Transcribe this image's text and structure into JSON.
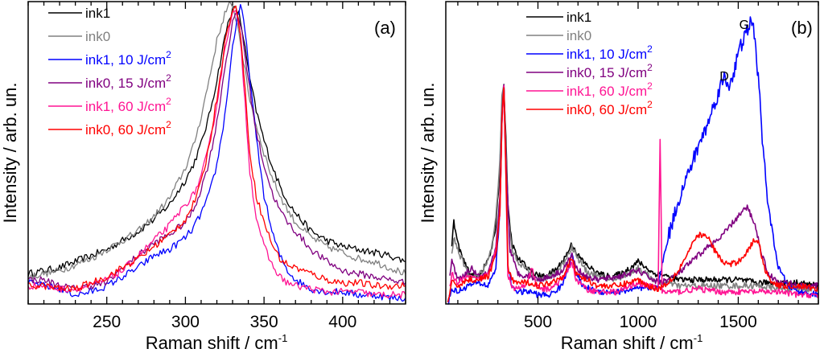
{
  "chart_data": [
    {
      "type": "line",
      "panel_label": "(a)",
      "xlabel": "Raman shift / cm",
      "xlabel_sup": "-1",
      "ylabel": "Intensity / arb. un.",
      "xlim": [
        200,
        440
      ],
      "ylim": [
        0,
        1
      ],
      "xticks": [
        250,
        300,
        350,
        400
      ],
      "x_minor_step": 10,
      "legend_position": "top-left",
      "grid": false,
      "series": [
        {
          "name": "ink1",
          "label_main": "ink1",
          "label_sup": "",
          "color": "#000000",
          "x": [
            200,
            210,
            220,
            230,
            240,
            250,
            260,
            270,
            280,
            290,
            300,
            305,
            310,
            315,
            320,
            325,
            328,
            331,
            334,
            337,
            340,
            345,
            350,
            355,
            360,
            365,
            370,
            380,
            390,
            400,
            410,
            420,
            430,
            440
          ],
          "y": [
            0.1,
            0.11,
            0.12,
            0.14,
            0.16,
            0.18,
            0.21,
            0.24,
            0.28,
            0.33,
            0.41,
            0.46,
            0.53,
            0.62,
            0.74,
            0.88,
            0.95,
            0.98,
            0.96,
            0.88,
            0.77,
            0.64,
            0.54,
            0.46,
            0.39,
            0.34,
            0.3,
            0.24,
            0.21,
            0.19,
            0.18,
            0.17,
            0.16,
            0.14
          ]
        },
        {
          "name": "ink0",
          "label_main": "ink0",
          "label_sup": "",
          "color": "#808080",
          "x": [
            200,
            210,
            220,
            230,
            240,
            250,
            260,
            270,
            280,
            290,
            300,
            305,
            310,
            315,
            320,
            325,
            328,
            331,
            334,
            337,
            340,
            345,
            350,
            355,
            360,
            365,
            370,
            380,
            390,
            400,
            410,
            420,
            430,
            440
          ],
          "y": [
            0.09,
            0.1,
            0.11,
            0.13,
            0.15,
            0.18,
            0.21,
            0.24,
            0.29,
            0.35,
            0.45,
            0.52,
            0.62,
            0.74,
            0.87,
            0.96,
            0.99,
            0.97,
            0.9,
            0.8,
            0.7,
            0.59,
            0.5,
            0.42,
            0.36,
            0.31,
            0.27,
            0.22,
            0.19,
            0.17,
            0.15,
            0.14,
            0.12,
            0.1
          ]
        },
        {
          "name": "ink1, 10 J/cm2",
          "label_main": "ink1, 10 J/cm",
          "label_sup": "2",
          "color": "#0000ff",
          "x": [
            200,
            210,
            220,
            230,
            240,
            250,
            260,
            270,
            280,
            290,
            300,
            305,
            310,
            315,
            320,
            325,
            330,
            333,
            335,
            337,
            340,
            345,
            350,
            355,
            360,
            365,
            370,
            380,
            390,
            400,
            410,
            420,
            430,
            440
          ],
          "y": [
            0.07,
            0.06,
            0.05,
            0.03,
            0.04,
            0.06,
            0.09,
            0.12,
            0.16,
            0.18,
            0.22,
            0.25,
            0.3,
            0.36,
            0.46,
            0.62,
            0.85,
            0.95,
            0.98,
            0.94,
            0.8,
            0.55,
            0.36,
            0.24,
            0.16,
            0.11,
            0.08,
            0.05,
            0.04,
            0.04,
            0.03,
            0.03,
            0.02,
            0.02
          ]
        },
        {
          "name": "ink0, 15 J/cm2",
          "label_main": "ink0, 15 J/cm",
          "label_sup": "2",
          "color": "#800080",
          "x": [
            200,
            210,
            220,
            230,
            240,
            250,
            260,
            270,
            280,
            290,
            300,
            305,
            310,
            315,
            320,
            325,
            330,
            333,
            336,
            340,
            345,
            350,
            355,
            360,
            365,
            370,
            380,
            390,
            400,
            410,
            420,
            430,
            440
          ],
          "y": [
            0.08,
            0.08,
            0.06,
            0.05,
            0.06,
            0.07,
            0.12,
            0.16,
            0.2,
            0.23,
            0.27,
            0.31,
            0.38,
            0.47,
            0.6,
            0.78,
            0.93,
            0.96,
            0.9,
            0.74,
            0.57,
            0.46,
            0.37,
            0.31,
            0.27,
            0.24,
            0.18,
            0.14,
            0.11,
            0.1,
            0.09,
            0.08,
            0.07
          ]
        },
        {
          "name": "ink1, 60 J/cm2",
          "label_main": "ink1, 60 J/cm",
          "label_sup": "2",
          "color": "#ff1493",
          "x": [
            200,
            210,
            220,
            230,
            240,
            250,
            260,
            270,
            280,
            290,
            300,
            305,
            310,
            315,
            320,
            325,
            329,
            332,
            335,
            338,
            341,
            345,
            350,
            355,
            360,
            365,
            370,
            380,
            390,
            400,
            410,
            420,
            430,
            440
          ],
          "y": [
            0.06,
            0.06,
            0.05,
            0.05,
            0.06,
            0.08,
            0.11,
            0.16,
            0.21,
            0.26,
            0.33,
            0.36,
            0.42,
            0.52,
            0.66,
            0.84,
            0.95,
            0.97,
            0.88,
            0.66,
            0.44,
            0.29,
            0.19,
            0.13,
            0.09,
            0.07,
            0.06,
            0.05,
            0.04,
            0.04,
            0.04,
            0.03,
            0.03,
            0.03
          ]
        },
        {
          "name": "ink0, 60 J/cm2",
          "label_main": "ink0, 60 J/cm",
          "label_sup": "2",
          "color": "#ff0000",
          "x": [
            200,
            210,
            220,
            230,
            240,
            250,
            260,
            270,
            280,
            290,
            300,
            305,
            310,
            315,
            320,
            325,
            329,
            332,
            335,
            338,
            341,
            345,
            350,
            355,
            360,
            365,
            370,
            380,
            390,
            400,
            410,
            420,
            430,
            440
          ],
          "y": [
            0.06,
            0.06,
            0.05,
            0.05,
            0.07,
            0.09,
            0.12,
            0.15,
            0.19,
            0.23,
            0.28,
            0.33,
            0.4,
            0.52,
            0.68,
            0.86,
            0.96,
            0.98,
            0.9,
            0.7,
            0.5,
            0.36,
            0.27,
            0.2,
            0.15,
            0.13,
            0.12,
            0.1,
            0.08,
            0.07,
            0.07,
            0.06,
            0.06,
            0.06
          ]
        }
      ]
    },
    {
      "type": "line",
      "panel_label": "(b)",
      "xlabel": "Raman shift / cm",
      "xlabel_sup": "-1",
      "ylabel": "Intensity / arb. un.",
      "xlim": [
        40,
        1900
      ],
      "ylim": [
        0,
        1
      ],
      "xticks": [
        500,
        1000,
        1500
      ],
      "x_minor_step": 100,
      "legend_position": "top-center",
      "grid": false,
      "annotations": [
        {
          "text": "D",
          "x": 1430,
          "y": 0.74
        },
        {
          "text": "G",
          "x": 1530,
          "y": 0.91
        }
      ],
      "series": [
        {
          "name": "ink1",
          "label_main": "ink1",
          "label_sup": "",
          "color": "#000000",
          "x": [
            70,
            80,
            100,
            130,
            160,
            200,
            240,
            270,
            290,
            310,
            320,
            330,
            340,
            350,
            370,
            400,
            450,
            480,
            520,
            560,
            600,
            640,
            670,
            700,
            740,
            800,
            860,
            920,
            980,
            1000,
            1040,
            1080,
            1110,
            1150,
            1200,
            1300,
            1400,
            1500,
            1600,
            1700,
            1800,
            1900
          ],
          "y": [
            0.2,
            0.27,
            0.2,
            0.14,
            0.1,
            0.09,
            0.13,
            0.18,
            0.26,
            0.45,
            0.66,
            0.72,
            0.55,
            0.32,
            0.2,
            0.15,
            0.12,
            0.1,
            0.09,
            0.1,
            0.12,
            0.16,
            0.2,
            0.16,
            0.13,
            0.1,
            0.09,
            0.1,
            0.13,
            0.14,
            0.12,
            0.1,
            0.1,
            0.09,
            0.08,
            0.08,
            0.08,
            0.08,
            0.07,
            0.07,
            0.07,
            0.06
          ]
        },
        {
          "name": "ink0",
          "label_main": "ink0",
          "label_sup": "",
          "color": "#808080",
          "x": [
            70,
            80,
            100,
            130,
            160,
            200,
            240,
            270,
            290,
            310,
            320,
            330,
            340,
            350,
            370,
            400,
            450,
            480,
            520,
            560,
            600,
            640,
            670,
            700,
            740,
            800,
            860,
            920,
            980,
            1000,
            1040,
            1080,
            1110,
            1150,
            1200,
            1300,
            1400,
            1500,
            1600,
            1700,
            1800,
            1900
          ],
          "y": [
            0.17,
            0.22,
            0.18,
            0.13,
            0.09,
            0.09,
            0.13,
            0.19,
            0.28,
            0.48,
            0.68,
            0.72,
            0.52,
            0.3,
            0.18,
            0.14,
            0.11,
            0.09,
            0.08,
            0.09,
            0.11,
            0.15,
            0.19,
            0.15,
            0.11,
            0.09,
            0.08,
            0.09,
            0.11,
            0.12,
            0.1,
            0.08,
            0.07,
            0.07,
            0.06,
            0.06,
            0.06,
            0.06,
            0.06,
            0.05,
            0.05,
            0.05
          ]
        },
        {
          "name": "ink1, 10 J/cm2",
          "label_main": "ink1, 10 J/cm",
          "label_sup": "2",
          "color": "#0000ff",
          "x": [
            50,
            70,
            100,
            150,
            200,
            250,
            290,
            310,
            320,
            330,
            340,
            350,
            370,
            400,
            470,
            500,
            560,
            620,
            660,
            670,
            680,
            720,
            800,
            900,
            1000,
            1040,
            1100,
            1120,
            1150,
            1200,
            1250,
            1300,
            1350,
            1400,
            1430,
            1450,
            1480,
            1500,
            1530,
            1560,
            1580,
            1600,
            1620,
            1650,
            1700,
            1750,
            1800,
            1900
          ],
          "y": [
            0.0,
            0.05,
            0.04,
            0.06,
            0.07,
            0.06,
            0.12,
            0.3,
            0.6,
            0.72,
            0.45,
            0.12,
            0.06,
            0.04,
            0.04,
            0.03,
            0.03,
            0.06,
            0.14,
            0.17,
            0.12,
            0.06,
            0.04,
            0.04,
            0.05,
            0.05,
            0.06,
            0.13,
            0.22,
            0.34,
            0.43,
            0.52,
            0.6,
            0.7,
            0.75,
            0.72,
            0.77,
            0.83,
            0.88,
            0.93,
            0.9,
            0.75,
            0.55,
            0.32,
            0.12,
            0.06,
            0.04,
            0.03
          ]
        },
        {
          "name": "ink0, 15 J/cm2",
          "label_main": "ink0, 15 J/cm",
          "label_sup": "2",
          "color": "#800080",
          "x": [
            60,
            70,
            100,
            130,
            170,
            200,
            250,
            290,
            310,
            320,
            330,
            340,
            360,
            400,
            470,
            500,
            560,
            620,
            670,
            690,
            740,
            800,
            900,
            1000,
            1050,
            1100,
            1150,
            1200,
            1250,
            1300,
            1350,
            1400,
            1450,
            1500,
            1545,
            1580,
            1620,
            1650,
            1700,
            1750,
            1800,
            1900
          ],
          "y": [
            0.1,
            0.14,
            0.08,
            0.09,
            0.12,
            0.09,
            0.1,
            0.18,
            0.35,
            0.62,
            0.72,
            0.48,
            0.18,
            0.1,
            0.09,
            0.08,
            0.09,
            0.11,
            0.16,
            0.12,
            0.09,
            0.08,
            0.09,
            0.11,
            0.09,
            0.07,
            0.08,
            0.1,
            0.13,
            0.16,
            0.19,
            0.21,
            0.25,
            0.29,
            0.32,
            0.27,
            0.16,
            0.1,
            0.07,
            0.07,
            0.06,
            0.06
          ]
        },
        {
          "name": "ink1, 60 J/cm2",
          "label_main": "ink1, 60 J/cm",
          "label_sup": "2",
          "color": "#ff1493",
          "x": [
            60,
            70,
            100,
            150,
            200,
            250,
            290,
            310,
            320,
            330,
            340,
            350,
            370,
            400,
            450,
            470,
            490,
            520,
            560,
            620,
            670,
            690,
            740,
            800,
            900,
            1000,
            1050,
            1100,
            1105,
            1110,
            1115,
            1120,
            1200,
            1300,
            1400,
            1500,
            1600,
            1700,
            1800,
            1900
          ],
          "y": [
            0.05,
            0.1,
            0.07,
            0.09,
            0.08,
            0.1,
            0.18,
            0.3,
            0.6,
            0.72,
            0.42,
            0.1,
            0.05,
            0.05,
            0.07,
            0.12,
            0.06,
            0.05,
            0.05,
            0.08,
            0.14,
            0.08,
            0.05,
            0.04,
            0.04,
            0.07,
            0.06,
            0.05,
            0.3,
            0.55,
            0.3,
            0.04,
            0.04,
            0.05,
            0.04,
            0.04,
            0.04,
            0.04,
            0.03,
            0.03
          ]
        },
        {
          "name": "ink0, 60 J/cm2",
          "label_main": "ink0, 60 J/cm",
          "label_sup": "2",
          "color": "#ff0000",
          "x": [
            50,
            70,
            100,
            150,
            200,
            250,
            290,
            310,
            320,
            330,
            340,
            350,
            370,
            400,
            470,
            500,
            560,
            620,
            670,
            690,
            740,
            800,
            900,
            1000,
            1050,
            1100,
            1150,
            1200,
            1250,
            1300,
            1350,
            1380,
            1420,
            1460,
            1500,
            1540,
            1580,
            1600,
            1630,
            1660,
            1700,
            1800,
            1900
          ],
          "y": [
            0.0,
            0.07,
            0.06,
            0.08,
            0.08,
            0.09,
            0.16,
            0.3,
            0.6,
            0.72,
            0.44,
            0.12,
            0.08,
            0.07,
            0.07,
            0.06,
            0.07,
            0.09,
            0.15,
            0.1,
            0.08,
            0.06,
            0.06,
            0.08,
            0.06,
            0.05,
            0.07,
            0.11,
            0.17,
            0.23,
            0.22,
            0.18,
            0.14,
            0.13,
            0.14,
            0.17,
            0.21,
            0.21,
            0.12,
            0.08,
            0.06,
            0.06,
            0.05
          ]
        }
      ]
    }
  ]
}
